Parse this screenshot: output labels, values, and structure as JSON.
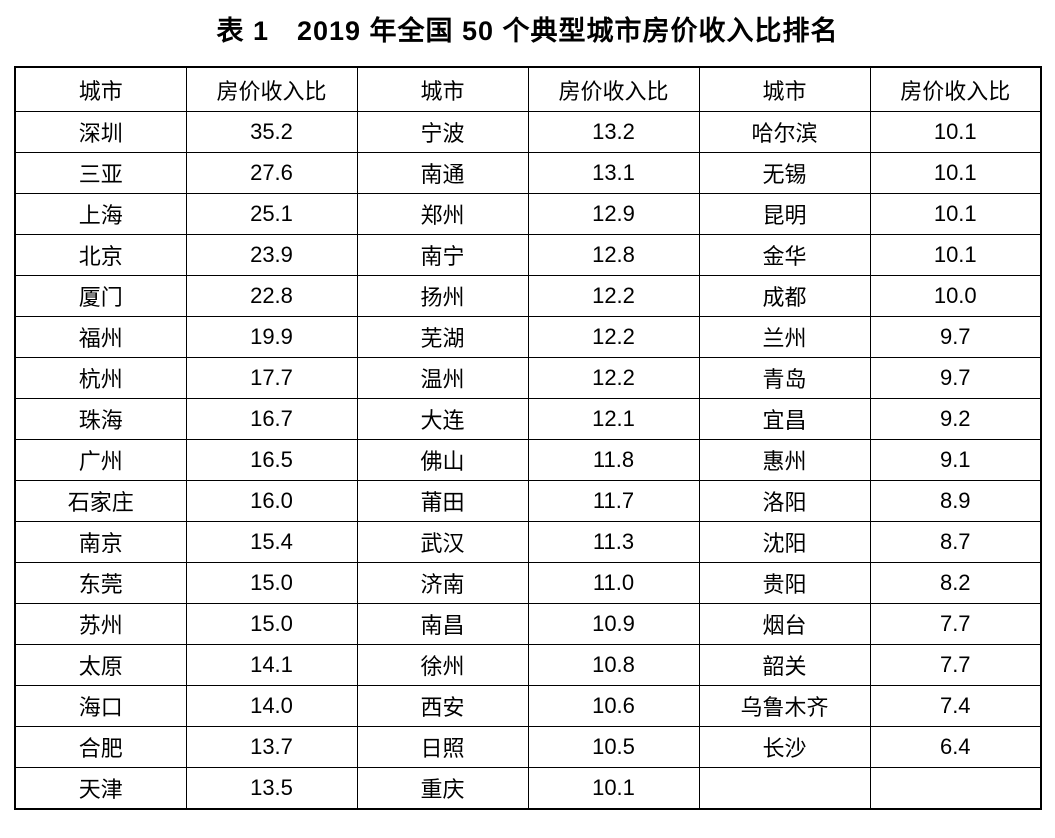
{
  "title": "表 1　2019 年全国 50 个典型城市房价收入比排名",
  "table": {
    "column_headers": [
      "城市",
      "房价收入比",
      "城市",
      "房价收入比",
      "城市",
      "房价收入比"
    ],
    "rows": [
      [
        "深圳",
        "35.2",
        "宁波",
        "13.2",
        "哈尔滨",
        "10.1"
      ],
      [
        "三亚",
        "27.6",
        "南通",
        "13.1",
        "无锡",
        "10.1"
      ],
      [
        "上海",
        "25.1",
        "郑州",
        "12.9",
        "昆明",
        "10.1"
      ],
      [
        "北京",
        "23.9",
        "南宁",
        "12.8",
        "金华",
        "10.1"
      ],
      [
        "厦门",
        "22.8",
        "扬州",
        "12.2",
        "成都",
        "10.0"
      ],
      [
        "福州",
        "19.9",
        "芜湖",
        "12.2",
        "兰州",
        "9.7"
      ],
      [
        "杭州",
        "17.7",
        "温州",
        "12.2",
        "青岛",
        "9.7"
      ],
      [
        "珠海",
        "16.7",
        "大连",
        "12.1",
        "宜昌",
        "9.2"
      ],
      [
        "广州",
        "16.5",
        "佛山",
        "11.8",
        "惠州",
        "9.1"
      ],
      [
        "石家庄",
        "16.0",
        "莆田",
        "11.7",
        "洛阳",
        "8.9"
      ],
      [
        "南京",
        "15.4",
        "武汉",
        "11.3",
        "沈阳",
        "8.7"
      ],
      [
        "东莞",
        "15.0",
        "济南",
        "11.0",
        "贵阳",
        "8.2"
      ],
      [
        "苏州",
        "15.0",
        "南昌",
        "10.9",
        "烟台",
        "7.7"
      ],
      [
        "太原",
        "14.1",
        "徐州",
        "10.8",
        "韶关",
        "7.7"
      ],
      [
        "海口",
        "14.0",
        "西安",
        "10.6",
        "乌鲁木齐",
        "7.4"
      ],
      [
        "合肥",
        "13.7",
        "日照",
        "10.5",
        "长沙",
        "6.4"
      ],
      [
        "天津",
        "13.5",
        "重庆",
        "10.1",
        "",
        ""
      ]
    ]
  },
  "colors": {
    "text": "#000000",
    "background": "#ffffff",
    "border": "#000000"
  }
}
